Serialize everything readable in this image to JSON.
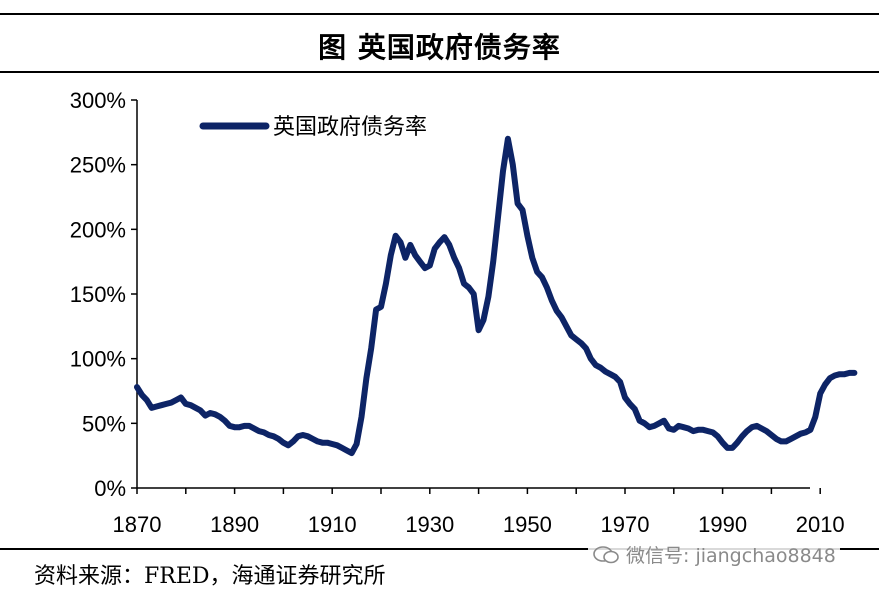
{
  "header": {
    "title": "图  英国政府债务率"
  },
  "footer": {
    "source": "资料来源：FRED，海通证券研究所"
  },
  "watermark": {
    "text": "微信号: jiangchao8848"
  },
  "chart_data": {
    "type": "line",
    "title": "图  英国政府债务率",
    "xlabel": "",
    "ylabel": "",
    "xlim": [
      1870,
      2020
    ],
    "ylim": [
      0,
      300
    ],
    "x_ticks": [
      "1870",
      "1890",
      "1910",
      "1930",
      "1950",
      "1970",
      "1990",
      "2010"
    ],
    "y_ticks": [
      "0%",
      "50%",
      "100%",
      "150%",
      "200%",
      "250%",
      "300%"
    ],
    "legend_position": "top-left",
    "grid": false,
    "color": "#0d2466",
    "series": [
      {
        "name": "英国政府债务率",
        "x": [
          1870,
          1871,
          1872,
          1873,
          1874,
          1875,
          1876,
          1877,
          1878,
          1879,
          1880,
          1881,
          1882,
          1883,
          1884,
          1885,
          1886,
          1887,
          1888,
          1889,
          1890,
          1891,
          1892,
          1893,
          1894,
          1895,
          1896,
          1897,
          1898,
          1899,
          1900,
          1901,
          1902,
          1903,
          1904,
          1905,
          1906,
          1907,
          1908,
          1909,
          1910,
          1911,
          1912,
          1913,
          1914,
          1915,
          1916,
          1917,
          1918,
          1919,
          1920,
          1921,
          1922,
          1923,
          1924,
          1925,
          1926,
          1927,
          1928,
          1929,
          1930,
          1931,
          1932,
          1933,
          1934,
          1935,
          1936,
          1937,
          1938,
          1939,
          1940,
          1941,
          1942,
          1943,
          1944,
          1945,
          1946,
          1947,
          1948,
          1949,
          1950,
          1951,
          1952,
          1953,
          1954,
          1955,
          1956,
          1957,
          1958,
          1959,
          1960,
          1961,
          1962,
          1963,
          1964,
          1965,
          1966,
          1967,
          1968,
          1969,
          1970,
          1971,
          1972,
          1973,
          1974,
          1975,
          1976,
          1977,
          1978,
          1979,
          1980,
          1981,
          1982,
          1983,
          1984,
          1985,
          1986,
          1987,
          1988,
          1989,
          1990,
          1991,
          1992,
          1993,
          1994,
          1995,
          1996,
          1997,
          1998,
          1999,
          2000,
          2001,
          2002,
          2003,
          2004,
          2005,
          2006,
          2007,
          2008,
          2009,
          2010,
          2011,
          2012,
          2013,
          2014,
          2015,
          2016,
          2017
        ],
        "values": [
          78,
          72,
          68,
          62,
          63,
          64,
          65,
          66,
          68,
          70,
          65,
          64,
          62,
          60,
          56,
          58,
          57,
          55,
          52,
          48,
          47,
          47,
          48,
          48,
          46,
          44,
          43,
          41,
          40,
          38,
          35,
          33,
          36,
          40,
          41,
          40,
          38,
          36,
          35,
          35,
          34,
          33,
          31,
          29,
          27,
          34,
          55,
          85,
          108,
          138,
          140,
          158,
          180,
          195,
          190,
          178,
          188,
          180,
          175,
          170,
          172,
          185,
          190,
          194,
          188,
          178,
          170,
          158,
          155,
          150,
          122,
          130,
          148,
          175,
          210,
          245,
          270,
          250,
          220,
          215,
          195,
          178,
          167,
          163,
          155,
          145,
          137,
          132,
          125,
          118,
          115,
          112,
          108,
          100,
          95,
          93,
          90,
          88,
          86,
          82,
          70,
          65,
          61,
          52,
          50,
          47,
          48,
          50,
          52,
          46,
          45,
          48,
          47,
          46,
          44,
          45,
          45,
          44,
          43,
          40,
          35,
          31,
          31,
          35,
          40,
          44,
          47,
          48,
          46,
          44,
          41,
          38,
          36,
          36,
          38,
          40,
          42,
          43,
          45,
          55,
          73,
          80,
          85,
          87,
          88,
          88,
          89,
          89
        ]
      }
    ]
  }
}
